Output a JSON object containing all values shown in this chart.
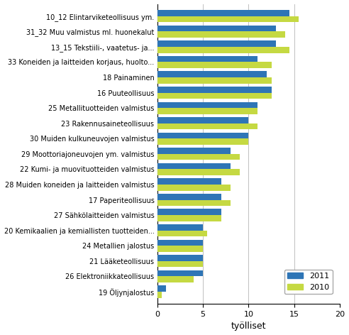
{
  "categories": [
    "19 Öljynjalostus",
    "26 Elektroniikkateollisuus",
    "21 Lääketeollisuus",
    "24 Metallien jalostus",
    "20 Kemikaalien ja kemiallisten tuotteiden...",
    "27 Sähkölaitteiden valmistus",
    "17 Paperiteollisuus",
    "28 Muiden koneiden ja laitteiden valmistus",
    "22 Kumi- ja muovituotteiden valmistus",
    "29 Moottoriajoneuvojen ym. valmistus",
    "30 Muiden kulkuneuvojen valmistus",
    "23 Rakennusaineteollisuus",
    "25 Metallituotteiden valmistus",
    "16 Puuteollisuus",
    "18 Painaminen",
    "33 Koneiden ja laitteiden korjaus, huolto...",
    "13_15 Tekstiili-, vaatetus- ja...",
    "31_32 Muu valmistus ml. huonekalut",
    "10_12 Elintarviketeollisuus ym."
  ],
  "values_2011": [
    1.0,
    5.0,
    5.0,
    5.0,
    5.0,
    7.0,
    7.0,
    7.0,
    8.0,
    8.0,
    10.0,
    10.0,
    11.0,
    12.5,
    12.0,
    11.0,
    13.0,
    13.0,
    14.5
  ],
  "values_2010": [
    0.5,
    4.0,
    5.0,
    5.0,
    5.5,
    7.0,
    8.0,
    8.0,
    9.0,
    9.0,
    10.0,
    11.0,
    11.0,
    12.5,
    12.5,
    12.5,
    14.5,
    14.0,
    15.5
  ],
  "color_2011": "#2E75B6",
  "color_2010": "#C5D942",
  "xlabel": "työlliset",
  "xlim": [
    0,
    20
  ],
  "xticks": [
    0,
    5,
    10,
    15,
    20
  ],
  "legend_labels": [
    "2011",
    "2010"
  ],
  "bar_height": 0.4,
  "figsize": [
    4.92,
    4.72
  ],
  "dpi": 100
}
